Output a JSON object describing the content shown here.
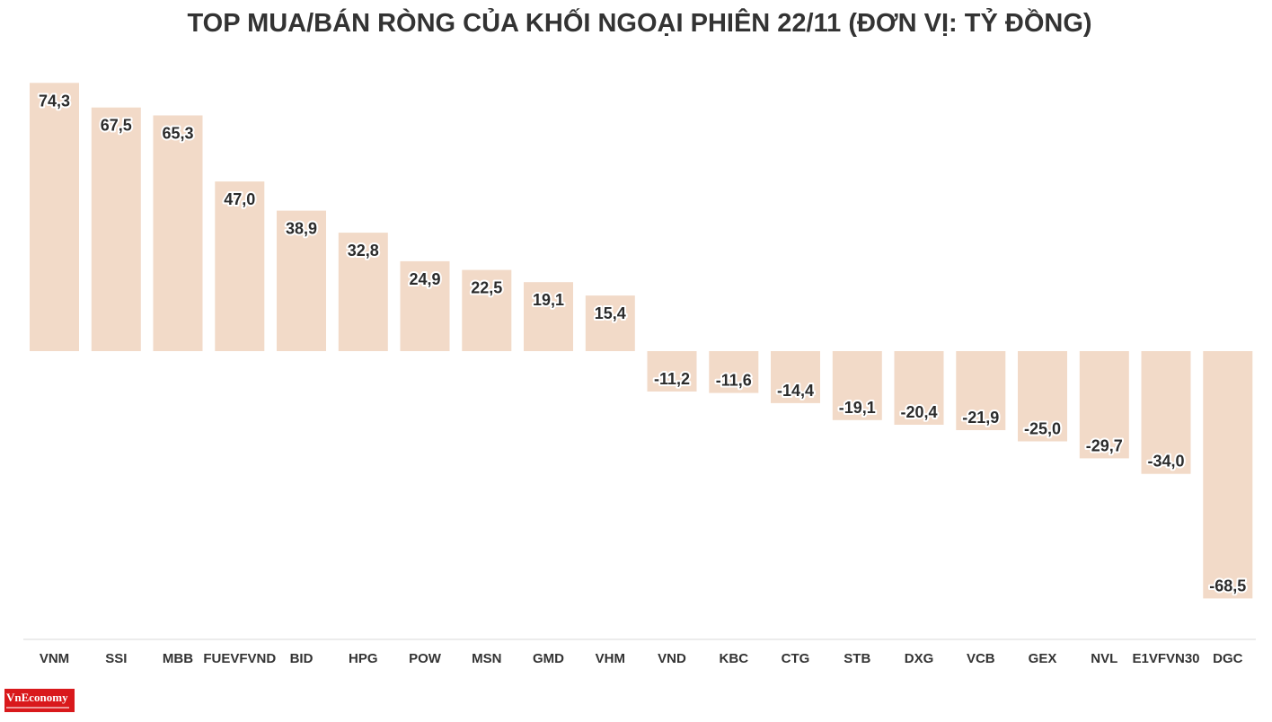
{
  "chart_data": {
    "type": "bar",
    "title": "TOP MUA/BÁN RÒNG CỦA KHỐI NGOẠI PHIÊN 22/11 (ĐƠN VỊ: TỶ ĐỒNG)",
    "xlabel": "",
    "ylabel": "",
    "categories": [
      "VNM",
      "SSI",
      "MBB",
      "FUEVFVND",
      "BID",
      "HPG",
      "POW",
      "MSN",
      "GMD",
      "VHM",
      "VND",
      "KBC",
      "CTG",
      "STB",
      "DXG",
      "VCB",
      "GEX",
      "NVL",
      "E1VFVN30",
      "DGC"
    ],
    "values": [
      74.3,
      67.5,
      65.3,
      47.0,
      38.9,
      32.8,
      24.9,
      22.5,
      19.1,
      15.4,
      -11.2,
      -11.6,
      -14.4,
      -19.1,
      -20.4,
      -21.9,
      -25.0,
      -29.7,
      -34.0,
      -68.5
    ],
    "value_labels": [
      "74,3",
      "67,5",
      "65,3",
      "47,0",
      "38,9",
      "32,8",
      "24,9",
      "22,5",
      "19,1",
      "15,4",
      "-11,2",
      "-11,6",
      "-14,4",
      "-19,1",
      "-20,4",
      "-21,9",
      "-25,0",
      "-29,7",
      "-34,0",
      "-68,5"
    ],
    "ylim": [
      -74.3,
      74.3
    ],
    "grid": false,
    "legend": "none",
    "bar_color": "#f2dac8"
  },
  "logo": {
    "text": "VnEconomy"
  }
}
